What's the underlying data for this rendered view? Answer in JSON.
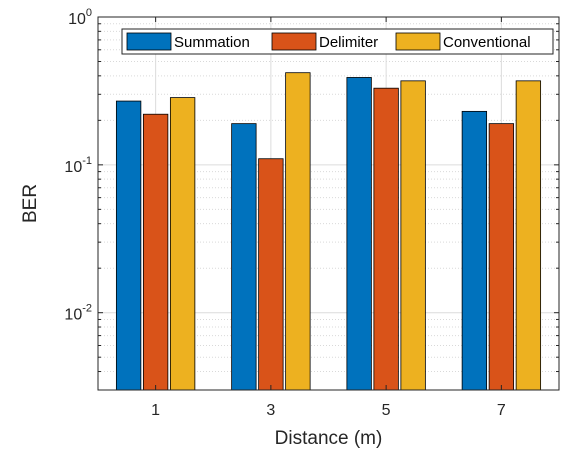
{
  "chart_data": {
    "type": "bar",
    "xlabel": "Distance (m)",
    "ylabel": "BER",
    "yscale": "log",
    "ylim": [
      0.003,
      1
    ],
    "grid": true,
    "legend_position": "top-right",
    "categories": [
      "1",
      "3",
      "5",
      "7"
    ],
    "y_ticks": [
      {
        "value": 1,
        "base": "10",
        "exp": "0"
      },
      {
        "value": 0.1,
        "base": "10",
        "exp": "-1"
      },
      {
        "value": 0.01,
        "base": "10",
        "exp": "-2"
      }
    ],
    "series": [
      {
        "name": "Summation",
        "color": "#0072BD",
        "values": [
          0.27,
          0.19,
          0.39,
          0.23
        ]
      },
      {
        "name": "Delimiter",
        "color": "#D95319",
        "values": [
          0.22,
          0.11,
          0.33,
          0.19
        ]
      },
      {
        "name": "Conventional",
        "color": "#EDB120",
        "values": [
          0.285,
          0.42,
          0.37,
          0.37
        ]
      }
    ]
  }
}
